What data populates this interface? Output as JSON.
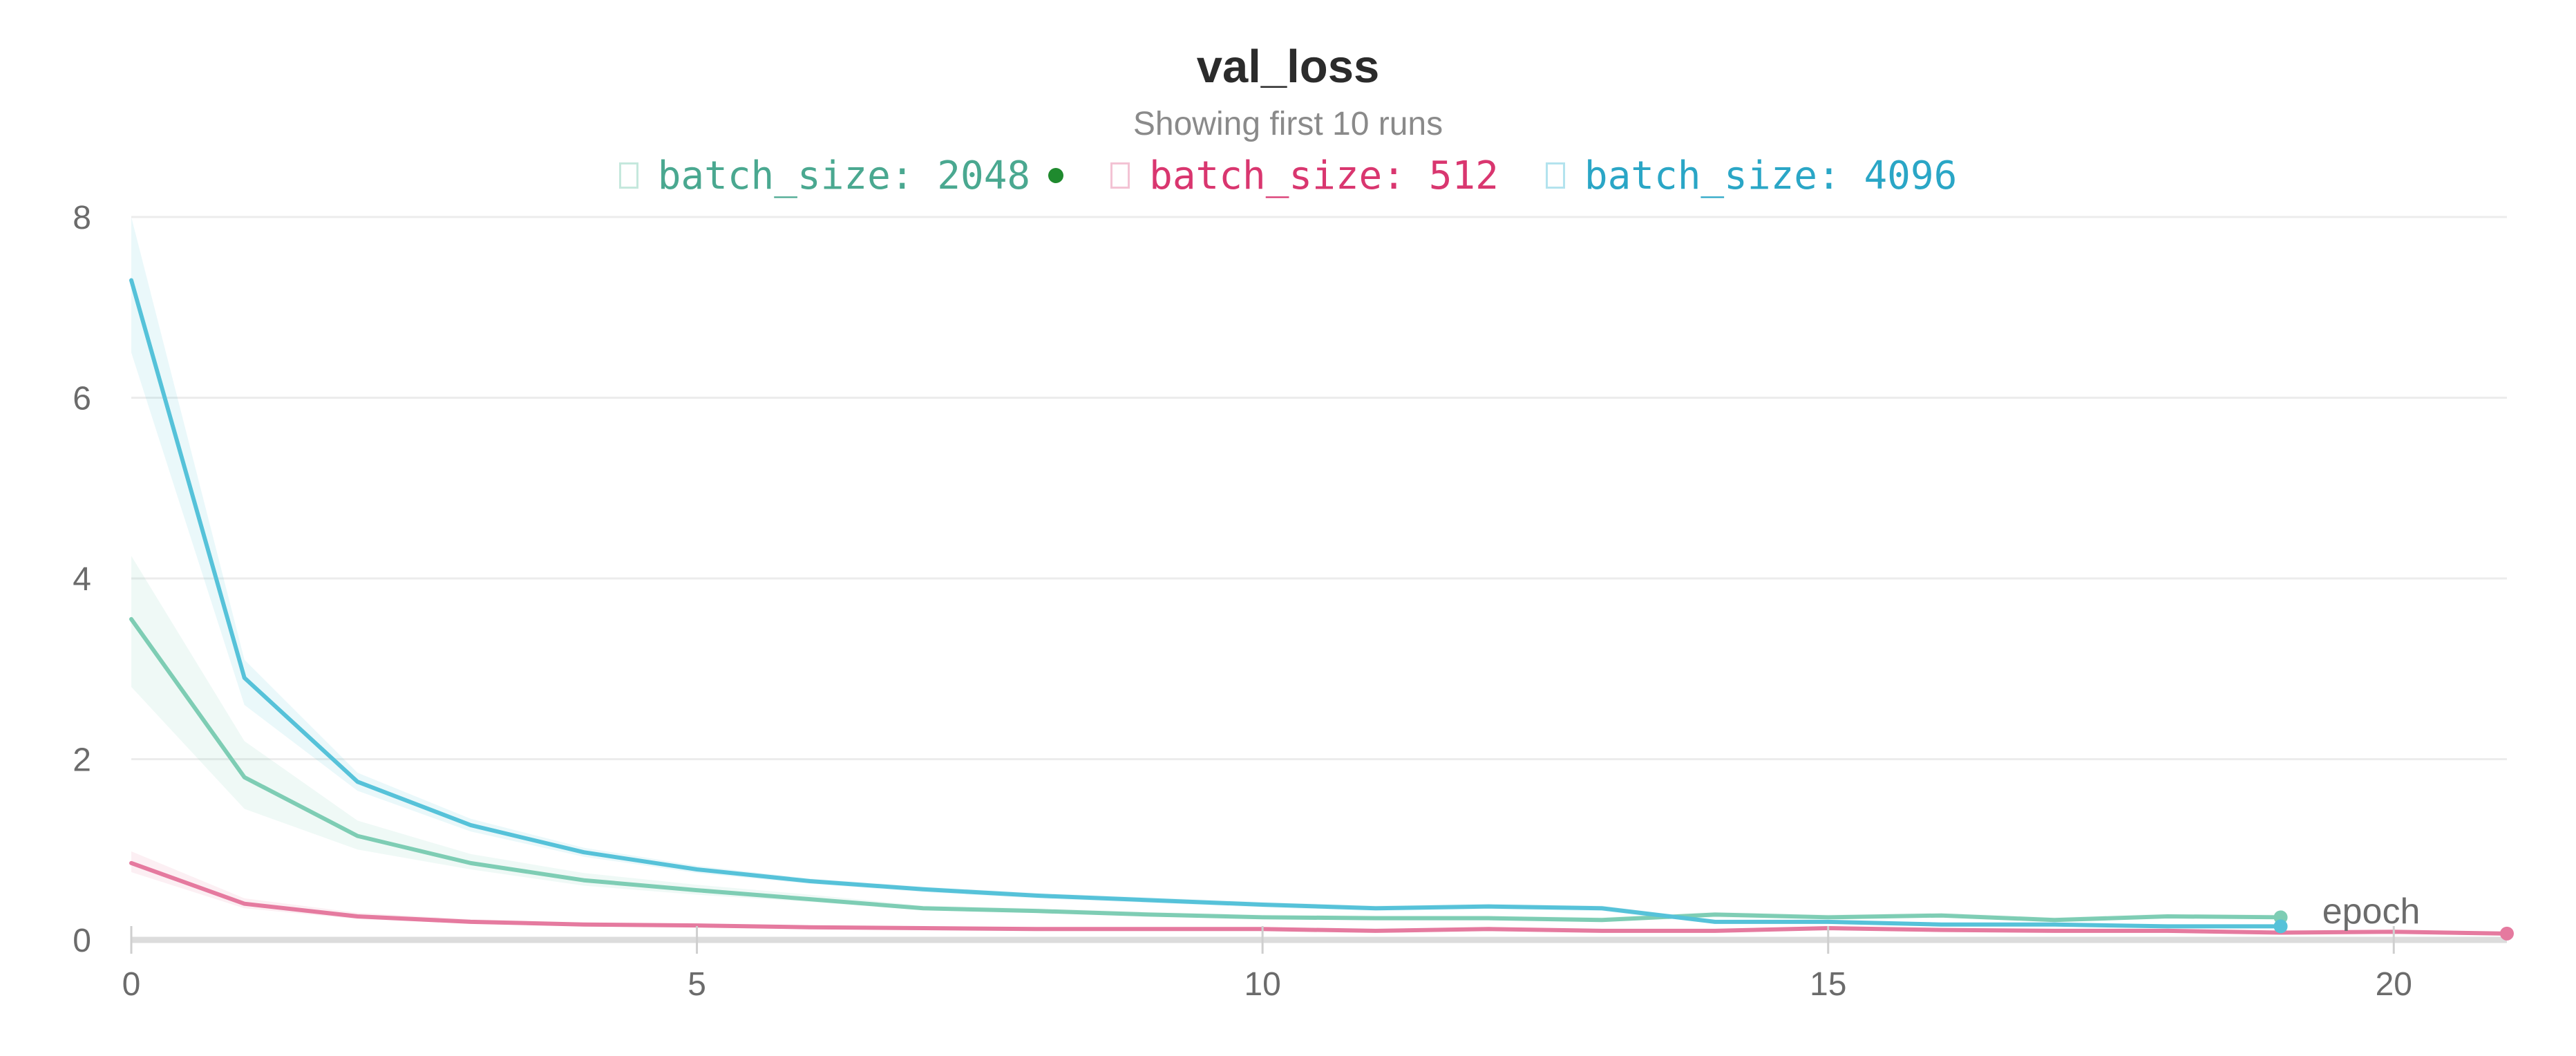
{
  "chart_data": {
    "type": "line",
    "title": "val_loss",
    "subtitle": "Showing first 10 runs",
    "xlabel": "epoch",
    "ylabel": "",
    "xlim": [
      0,
      21
    ],
    "ylim": [
      0,
      8
    ],
    "x_ticks": [
      "0",
      "5",
      "10",
      "15",
      "20"
    ],
    "y_ticks": [
      "0",
      "2",
      "4",
      "6",
      "8"
    ],
    "grid": true,
    "legend_position": "top-center",
    "series": [
      {
        "name": "batch_size: 2048",
        "color": "#7ecdb4",
        "legend_color": "#4aa890",
        "marker": "active-run-dot",
        "marker_color": "#1f8a2e",
        "x": [
          0,
          1,
          2,
          3,
          4,
          5,
          6,
          7,
          8,
          9,
          10,
          11,
          12,
          13,
          14,
          15,
          16,
          17,
          18,
          19
        ],
        "y": [
          3.55,
          1.8,
          1.15,
          0.85,
          0.66,
          0.55,
          0.45,
          0.35,
          0.32,
          0.28,
          0.25,
          0.24,
          0.24,
          0.22,
          0.28,
          0.25,
          0.27,
          0.22,
          0.26,
          0.25
        ],
        "band_low": [
          2.8,
          1.45,
          1.0,
          0.78,
          0.6,
          0.5,
          0.42,
          0.33,
          0.3,
          0.26,
          0.23,
          0.22,
          0.22,
          0.2,
          0.25,
          0.23,
          0.25,
          0.2,
          0.24,
          0.23
        ],
        "band_high": [
          4.25,
          2.2,
          1.32,
          0.95,
          0.74,
          0.61,
          0.5,
          0.38,
          0.35,
          0.31,
          0.28,
          0.27,
          0.27,
          0.25,
          0.31,
          0.28,
          0.3,
          0.25,
          0.29,
          0.28
        ]
      },
      {
        "name": "batch_size: 512",
        "color": "#e57a9f",
        "legend_color": "#d9366f",
        "x": [
          0,
          1,
          2,
          3,
          4,
          5,
          6,
          7,
          8,
          9,
          10,
          11,
          12,
          13,
          14,
          15,
          16,
          17,
          18,
          19,
          20,
          21
        ],
        "y": [
          0.85,
          0.4,
          0.26,
          0.2,
          0.17,
          0.16,
          0.14,
          0.13,
          0.12,
          0.12,
          0.12,
          0.1,
          0.12,
          0.1,
          0.1,
          0.13,
          0.11,
          0.1,
          0.1,
          0.08,
          0.09,
          0.07
        ],
        "band_low": [
          0.75,
          0.35,
          0.23,
          0.18,
          0.15,
          0.14,
          0.12,
          0.11,
          0.1,
          0.1,
          0.1,
          0.08,
          0.1,
          0.08,
          0.08,
          0.11,
          0.09,
          0.08,
          0.08,
          0.06,
          0.07,
          0.05
        ],
        "band_high": [
          0.98,
          0.46,
          0.3,
          0.23,
          0.19,
          0.18,
          0.16,
          0.15,
          0.14,
          0.14,
          0.14,
          0.12,
          0.14,
          0.12,
          0.12,
          0.15,
          0.13,
          0.12,
          0.12,
          0.1,
          0.11,
          0.09
        ]
      },
      {
        "name": "batch_size: 4096",
        "color": "#56c2d9",
        "legend_color": "#2aa6c6",
        "x": [
          0,
          1,
          2,
          3,
          4,
          5,
          6,
          7,
          8,
          9,
          10,
          11,
          12,
          13,
          14,
          15,
          16,
          17,
          18,
          19
        ],
        "y": [
          7.3,
          2.9,
          1.75,
          1.27,
          0.97,
          0.78,
          0.65,
          0.56,
          0.49,
          0.44,
          0.39,
          0.35,
          0.37,
          0.35,
          0.2,
          0.2,
          0.17,
          0.17,
          0.15,
          0.15
        ],
        "band_low": [
          6.5,
          2.6,
          1.65,
          1.2,
          0.92,
          0.74,
          0.62,
          0.53,
          0.46,
          0.41,
          0.36,
          0.32,
          0.34,
          0.32,
          0.18,
          0.18,
          0.15,
          0.15,
          0.13,
          0.13
        ],
        "band_high": [
          8.0,
          3.1,
          1.85,
          1.34,
          1.02,
          0.82,
          0.68,
          0.59,
          0.52,
          0.47,
          0.42,
          0.38,
          0.4,
          0.38,
          0.22,
          0.22,
          0.19,
          0.19,
          0.17,
          0.17
        ]
      }
    ]
  }
}
